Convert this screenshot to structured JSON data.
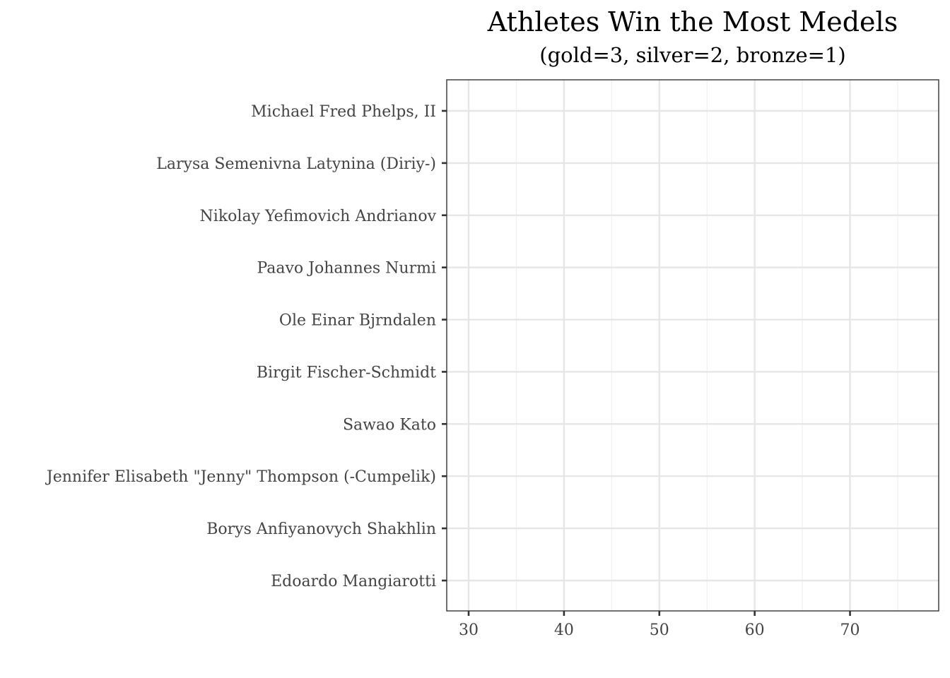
{
  "chart_data": {
    "type": "scatter",
    "title": "Athletes Win the Most Medels",
    "subtitle": "(gold=3, silver=2, bronze=1)",
    "xlabel": "",
    "ylabel": "",
    "xlim": [
      27.7,
      79.3
    ],
    "x_ticks": [
      30,
      40,
      50,
      60,
      70
    ],
    "x_minor_ticks": [
      35,
      45,
      55,
      65,
      75
    ],
    "categories": [
      "Michael Fred Phelps, II",
      "Larysa Semenivna Latynina (Diriy-)",
      "Nikolay Yefimovich Andrianov",
      "Paavo Johannes Nurmi",
      "Ole Einar Bjrndalen",
      "Birgit Fischer-Schmidt",
      "Sawao Kato",
      "Jennifer Elisabeth \"Jenny\" Thompson (-Cumpelik)",
      "Borys Anfiyanovych Shakhlin",
      "Edoardo Mangiarotti"
    ],
    "values": [],
    "grid": true,
    "theme": "bw"
  }
}
